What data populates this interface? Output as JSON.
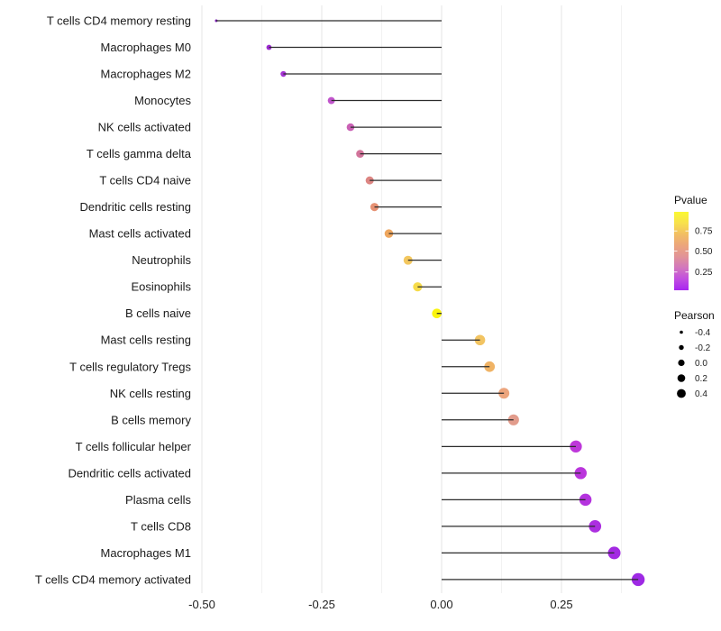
{
  "chart_data": {
    "type": "lollipop",
    "title": "",
    "xlabel": "",
    "ylabel": "",
    "xlim": [
      -0.52,
      0.44
    ],
    "grid": {
      "major": [
        -0.5,
        -0.25,
        0.0,
        0.25
      ],
      "minor": [
        -0.375,
        -0.125,
        0.125,
        0.375
      ],
      "horizontal": "off"
    },
    "x_ticks": [
      {
        "value": -0.5,
        "label": "-0.50"
      },
      {
        "value": -0.25,
        "label": "-0.25"
      },
      {
        "value": 0.0,
        "label": "0.00"
      },
      {
        "value": 0.25,
        "label": "0.25"
      }
    ],
    "legend_position": "right",
    "rows": [
      {
        "label": "T cells CD4 memory resting",
        "pearson": -0.47,
        "color": "#7E1CB8"
      },
      {
        "label": "Macrophages M0",
        "pearson": -0.36,
        "color": "#9C2BD0"
      },
      {
        "label": "Macrophages M2",
        "pearson": -0.33,
        "color": "#A534D4"
      },
      {
        "label": "Monocytes",
        "pearson": -0.23,
        "color": "#C155CC"
      },
      {
        "label": "NK cells activated",
        "pearson": -0.19,
        "color": "#CA61B5"
      },
      {
        "label": "T cells gamma delta",
        "pearson": -0.17,
        "color": "#D2749B"
      },
      {
        "label": "T cells CD4 naive",
        "pearson": -0.15,
        "color": "#DD8683"
      },
      {
        "label": "Dendritic cells resting",
        "pearson": -0.14,
        "color": "#E69173"
      },
      {
        "label": "Mast cells activated",
        "pearson": -0.11,
        "color": "#EEA65E"
      },
      {
        "label": "Neutrophils",
        "pearson": -0.07,
        "color": "#F3C75F"
      },
      {
        "label": "Eosinophils",
        "pearson": -0.05,
        "color": "#F6DB49"
      },
      {
        "label": "B cells naive",
        "pearson": -0.01,
        "color": "#FAF40E"
      },
      {
        "label": "Mast cells resting",
        "pearson": 0.08,
        "color": "#F2C462"
      },
      {
        "label": "T cells regulatory  Tregs",
        "pearson": 0.1,
        "color": "#F0B365"
      },
      {
        "label": "NK cells resting",
        "pearson": 0.13,
        "color": "#ECA57D"
      },
      {
        "label": "B cells memory",
        "pearson": 0.15,
        "color": "#E29C8C"
      },
      {
        "label": "T cells follicular helper",
        "pearson": 0.28,
        "color": "#BE37DA"
      },
      {
        "label": "Dendritic cells activated",
        "pearson": 0.29,
        "color": "#BA35DC"
      },
      {
        "label": "Plasma cells",
        "pearson": 0.3,
        "color": "#B433DE"
      },
      {
        "label": "T cells CD8",
        "pearson": 0.32,
        "color": "#AC2FE0"
      },
      {
        "label": "Macrophages M1",
        "pearson": 0.36,
        "color": "#A329E2"
      },
      {
        "label": "T cells CD4 memory activated",
        "pearson": 0.41,
        "color": "#9E29E4"
      }
    ],
    "legend": {
      "pvalue": {
        "title": "Pvalue",
        "ticks": [
          {
            "label": "0.75",
            "frac_from_top": 0.244
          },
          {
            "label": "0.50",
            "frac_from_top": 0.5
          },
          {
            "label": "0.25",
            "frac_from_top": 0.767
          }
        ],
        "gradient_top_to_bottom": [
          "#FAF832",
          "#F8E14C",
          "#F2BE62",
          "#ECA57C",
          "#E19398",
          "#D276BE",
          "#C14EE0",
          "#A826F0"
        ]
      },
      "pearson": {
        "title": "Pearson",
        "sizes": [
          {
            "label": "-0.4",
            "r": 1.8
          },
          {
            "label": "-0.2",
            "r": 2.7
          },
          {
            "label": "0.0",
            "r": 3.6
          },
          {
            "label": "0.2",
            "r": 4.3
          },
          {
            "label": "0.4",
            "r": 4.9
          }
        ],
        "dot_color": "#000000"
      }
    },
    "colors": {
      "stem_line": "#2b2b2b",
      "grid_major": "#e4e4e4",
      "grid_minor": "#f2f2f2",
      "background": "#ffffff"
    }
  }
}
